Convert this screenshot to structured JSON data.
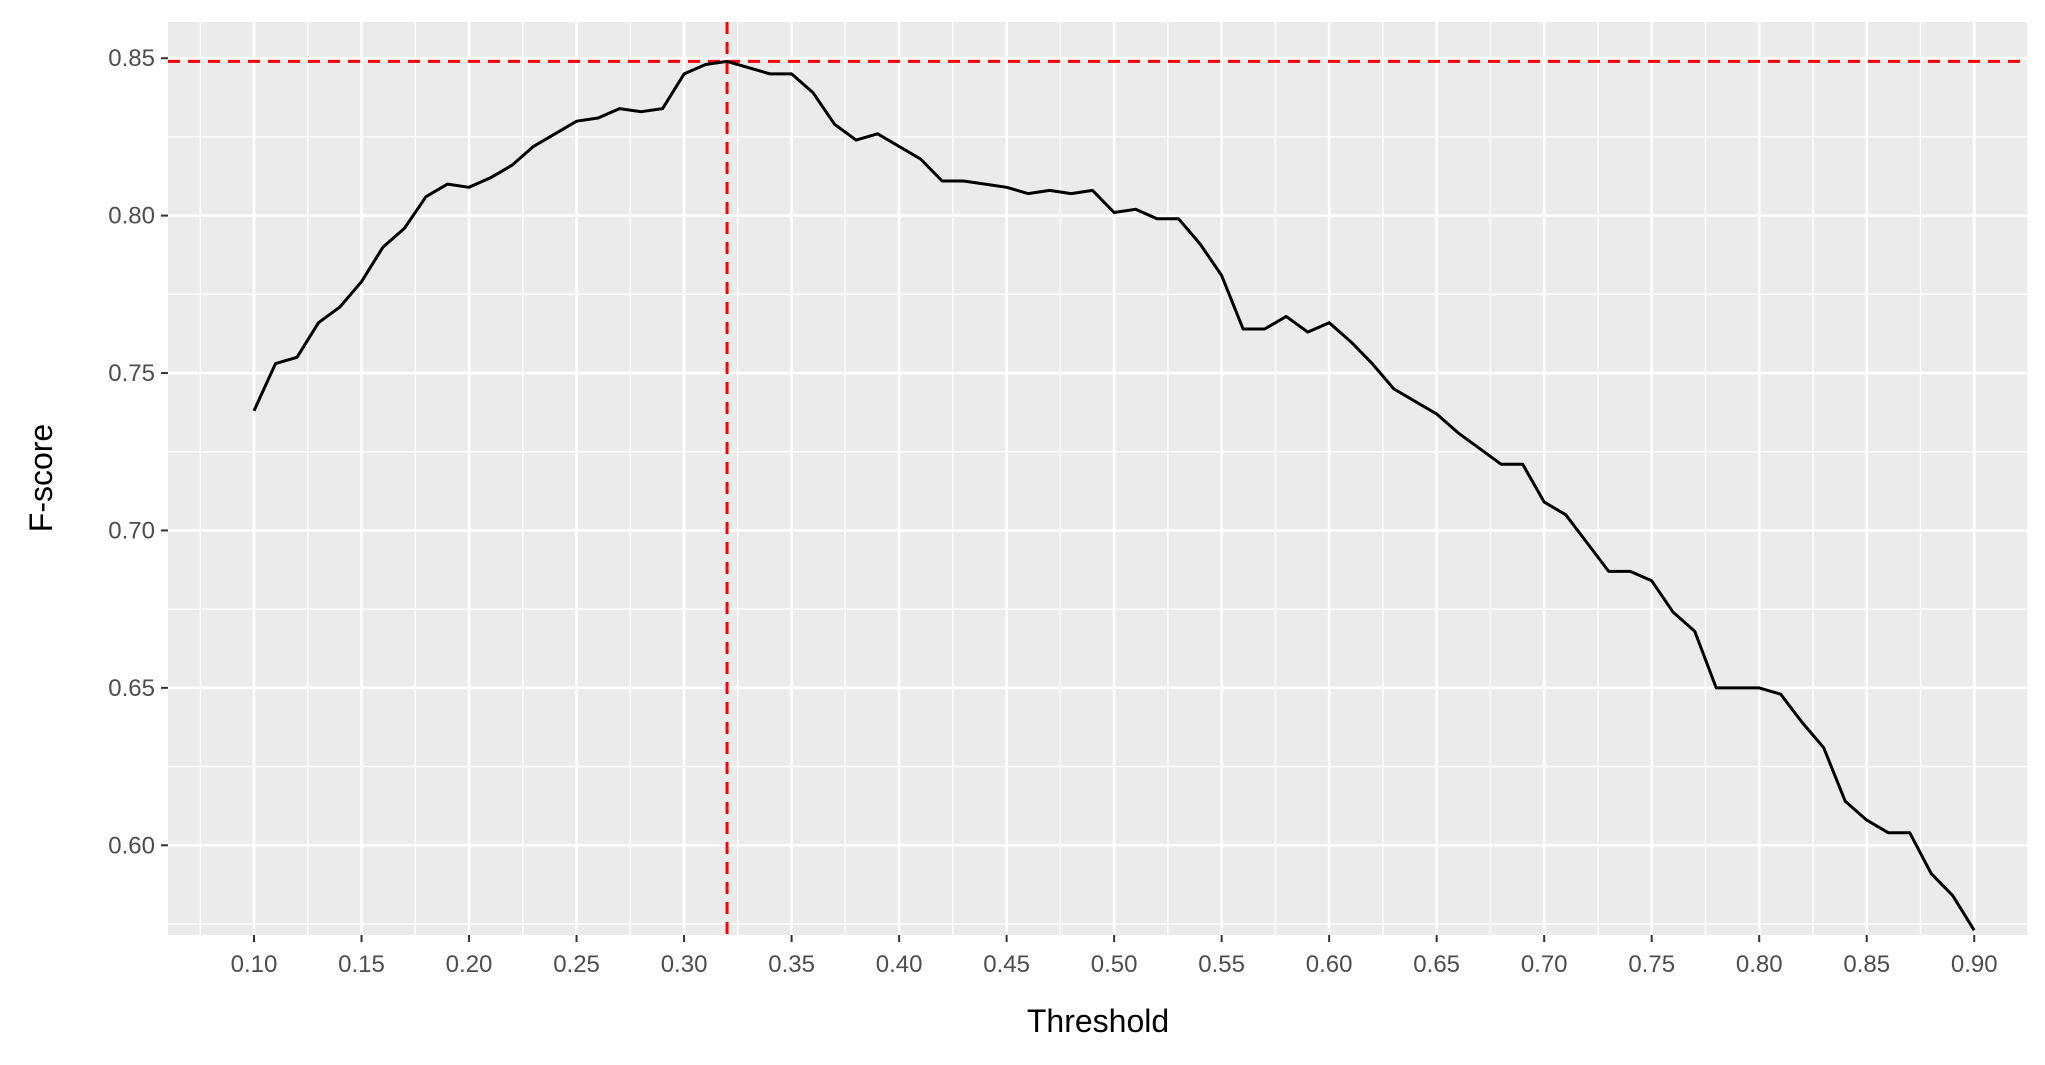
{
  "chart_data": {
    "type": "line",
    "title": "",
    "xlabel": "Threshold",
    "ylabel": "F-score",
    "xlim": [
      0.06,
      0.925
    ],
    "ylim": [
      0.5715,
      0.8615
    ],
    "x_ticks": [
      "0.10",
      "0.15",
      "0.20",
      "0.25",
      "0.30",
      "0.35",
      "0.40",
      "0.45",
      "0.50",
      "0.55",
      "0.60",
      "0.65",
      "0.70",
      "0.75",
      "0.80",
      "0.85",
      "0.90"
    ],
    "y_ticks": [
      "0.60",
      "0.65",
      "0.70",
      "0.75",
      "0.80",
      "0.85"
    ],
    "grid": true,
    "background": "#ebebeb",
    "line_color": "#000000",
    "reference_color": "#ff0000",
    "reference_lines": {
      "x": 0.32,
      "y": 0.849
    },
    "series": [
      {
        "x": [
          0.1,
          0.11,
          0.12,
          0.13,
          0.14,
          0.15,
          0.16,
          0.17,
          0.18,
          0.19,
          0.2,
          0.21,
          0.22,
          0.23,
          0.24,
          0.25,
          0.26,
          0.27,
          0.28,
          0.29,
          0.3,
          0.31,
          0.32,
          0.33,
          0.34,
          0.35,
          0.36,
          0.37,
          0.38,
          0.39,
          0.4,
          0.41,
          0.42,
          0.43,
          0.44,
          0.45,
          0.46,
          0.47,
          0.48,
          0.49,
          0.5,
          0.51,
          0.52,
          0.53,
          0.54,
          0.55,
          0.56,
          0.57,
          0.58,
          0.59,
          0.6,
          0.61,
          0.62,
          0.63,
          0.64,
          0.65,
          0.66,
          0.67,
          0.68,
          0.69,
          0.7,
          0.71,
          0.72,
          0.73,
          0.74,
          0.75,
          0.76,
          0.77,
          0.78,
          0.79,
          0.8,
          0.81,
          0.82,
          0.83,
          0.84,
          0.85,
          0.86,
          0.87,
          0.88,
          0.89,
          0.9
        ],
        "values": [
          0.738,
          0.753,
          0.755,
          0.766,
          0.771,
          0.779,
          0.79,
          0.796,
          0.806,
          0.81,
          0.809,
          0.812,
          0.816,
          0.822,
          0.826,
          0.83,
          0.831,
          0.834,
          0.833,
          0.834,
          0.845,
          0.848,
          0.849,
          0.847,
          0.845,
          0.845,
          0.839,
          0.829,
          0.824,
          0.826,
          0.822,
          0.818,
          0.811,
          0.811,
          0.81,
          0.809,
          0.807,
          0.808,
          0.807,
          0.808,
          0.801,
          0.802,
          0.799,
          0.799,
          0.791,
          0.781,
          0.764,
          0.764,
          0.768,
          0.763,
          0.766,
          0.76,
          0.753,
          0.745,
          0.741,
          0.737,
          0.731,
          0.726,
          0.721,
          0.721,
          0.709,
          0.705,
          0.696,
          0.687,
          0.687,
          0.684,
          0.674,
          0.668,
          0.65,
          0.65,
          0.65,
          0.648,
          0.639,
          0.631,
          0.614,
          0.608,
          0.604,
          0.604,
          0.591,
          0.584,
          0.573
        ]
      }
    ]
  }
}
